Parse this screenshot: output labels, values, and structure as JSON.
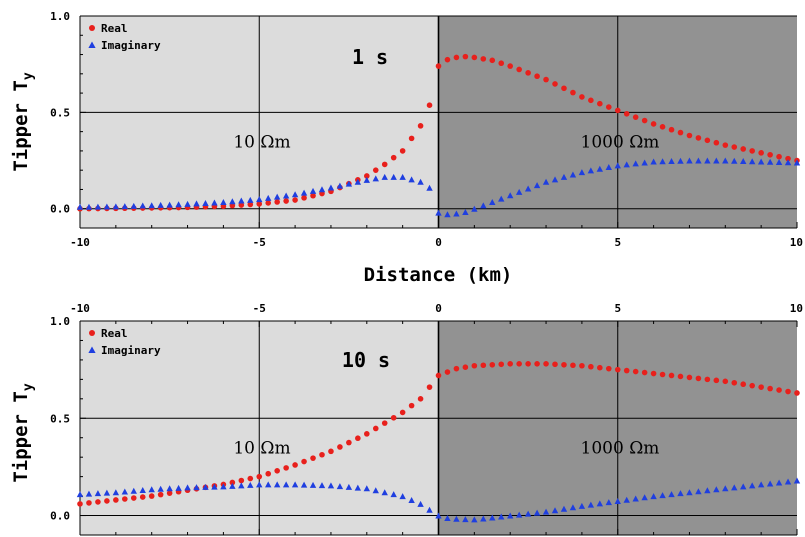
{
  "colors": {
    "real": "#e8201c",
    "imag": "#1f3fe0",
    "left_bg": "#dcdcdc",
    "right_bg": "#929292",
    "grid": "#000000"
  },
  "chart_data": [
    {
      "type": "scatter",
      "period_label": "1 s",
      "ylabel_main": "Tipper T",
      "ylabel_sub": "y",
      "xlabel": "Distance (km)",
      "xlim": [
        -10,
        10
      ],
      "ylim": [
        -0.1,
        1.0
      ],
      "xticks": [
        "-10",
        "-5",
        "0",
        "5",
        "10"
      ],
      "yticks": [
        "0.0",
        "0.5",
        "1.0"
      ],
      "region_left_label": "10 Ωm",
      "region_right_label": "1000 Ωm",
      "legend_position": "top-left",
      "series": [
        {
          "name": "Real",
          "marker": "circle",
          "points": [
            [
              -10,
              0.0
            ],
            [
              -9,
              0.002
            ],
            [
              -8,
              0.004
            ],
            [
              -7,
              0.007
            ],
            [
              -6,
              0.013
            ],
            [
              -5,
              0.025
            ],
            [
              -4,
              0.045
            ],
            [
              -3,
              0.09
            ],
            [
              -2,
              0.17
            ],
            [
              -1.5,
              0.23
            ],
            [
              -1,
              0.3
            ],
            [
              -0.5,
              0.43
            ],
            [
              -0.15,
              0.58
            ],
            [
              0,
              0.74
            ],
            [
              0.3,
              0.78
            ],
            [
              0.7,
              0.79
            ],
            [
              1,
              0.785
            ],
            [
              1.5,
              0.77
            ],
            [
              2,
              0.74
            ],
            [
              3,
              0.67
            ],
            [
              4,
              0.58
            ],
            [
              5,
              0.51
            ],
            [
              6,
              0.44
            ],
            [
              7,
              0.38
            ],
            [
              8,
              0.33
            ],
            [
              9,
              0.29
            ],
            [
              10,
              0.25
            ]
          ]
        },
        {
          "name": "Imaginary",
          "marker": "triangle",
          "points": [
            [
              -10,
              0.01
            ],
            [
              -9,
              0.012
            ],
            [
              -8,
              0.018
            ],
            [
              -7,
              0.025
            ],
            [
              -6,
              0.035
            ],
            [
              -5,
              0.05
            ],
            [
              -4,
              0.075
            ],
            [
              -3,
              0.11
            ],
            [
              -2.5,
              0.13
            ],
            [
              -2,
              0.15
            ],
            [
              -1.5,
              0.165
            ],
            [
              -1,
              0.165
            ],
            [
              -0.5,
              0.14
            ],
            [
              -0.1,
              0.09
            ],
            [
              0,
              -0.02
            ],
            [
              0.3,
              -0.03
            ],
            [
              0.7,
              -0.02
            ],
            [
              1,
              0.0
            ],
            [
              2,
              0.07
            ],
            [
              3,
              0.14
            ],
            [
              4,
              0.19
            ],
            [
              5,
              0.225
            ],
            [
              6,
              0.245
            ],
            [
              7,
              0.25
            ],
            [
              8,
              0.25
            ],
            [
              9,
              0.245
            ],
            [
              10,
              0.24
            ]
          ]
        }
      ]
    },
    {
      "type": "scatter",
      "period_label": "10 s",
      "ylabel_main": "Tipper T",
      "ylabel_sub": "y",
      "xlabel": "",
      "xlim": [
        -10,
        10
      ],
      "ylim": [
        -0.1,
        1.0
      ],
      "xticks": [
        "-10",
        "-5",
        "0",
        "5",
        "10"
      ],
      "yticks": [
        "0.0",
        "0.5",
        "1.0"
      ],
      "region_left_label": "10 Ωm",
      "region_right_label": "1000 Ωm",
      "legend_position": "top-left",
      "series": [
        {
          "name": "Real",
          "marker": "circle",
          "points": [
            [
              -10,
              0.06
            ],
            [
              -9,
              0.08
            ],
            [
              -8,
              0.1
            ],
            [
              -7,
              0.13
            ],
            [
              -6,
              0.16
            ],
            [
              -5,
              0.2
            ],
            [
              -4,
              0.26
            ],
            [
              -3,
              0.33
            ],
            [
              -2,
              0.42
            ],
            [
              -1,
              0.53
            ],
            [
              -0.5,
              0.6
            ],
            [
              0,
              0.72
            ],
            [
              0.5,
              0.755
            ],
            [
              1,
              0.77
            ],
            [
              2,
              0.78
            ],
            [
              3,
              0.78
            ],
            [
              4,
              0.77
            ],
            [
              5,
              0.75
            ],
            [
              6,
              0.73
            ],
            [
              7,
              0.71
            ],
            [
              8,
              0.69
            ],
            [
              9,
              0.66
            ],
            [
              10,
              0.63
            ]
          ]
        },
        {
          "name": "Imaginary",
          "marker": "triangle",
          "points": [
            [
              -10,
              0.11
            ],
            [
              -9,
              0.12
            ],
            [
              -8,
              0.135
            ],
            [
              -7,
              0.145
            ],
            [
              -6,
              0.15
            ],
            [
              -5,
              0.16
            ],
            [
              -4,
              0.16
            ],
            [
              -3,
              0.155
            ],
            [
              -2,
              0.14
            ],
            [
              -1,
              0.1
            ],
            [
              -0.5,
              0.06
            ],
            [
              0,
              0.0
            ],
            [
              0.3,
              -0.015
            ],
            [
              1,
              -0.02
            ],
            [
              2,
              0.0
            ],
            [
              3,
              0.02
            ],
            [
              4,
              0.05
            ],
            [
              5,
              0.075
            ],
            [
              6,
              0.1
            ],
            [
              7,
              0.12
            ],
            [
              8,
              0.14
            ],
            [
              9,
              0.16
            ],
            [
              10,
              0.18
            ]
          ]
        }
      ]
    }
  ]
}
